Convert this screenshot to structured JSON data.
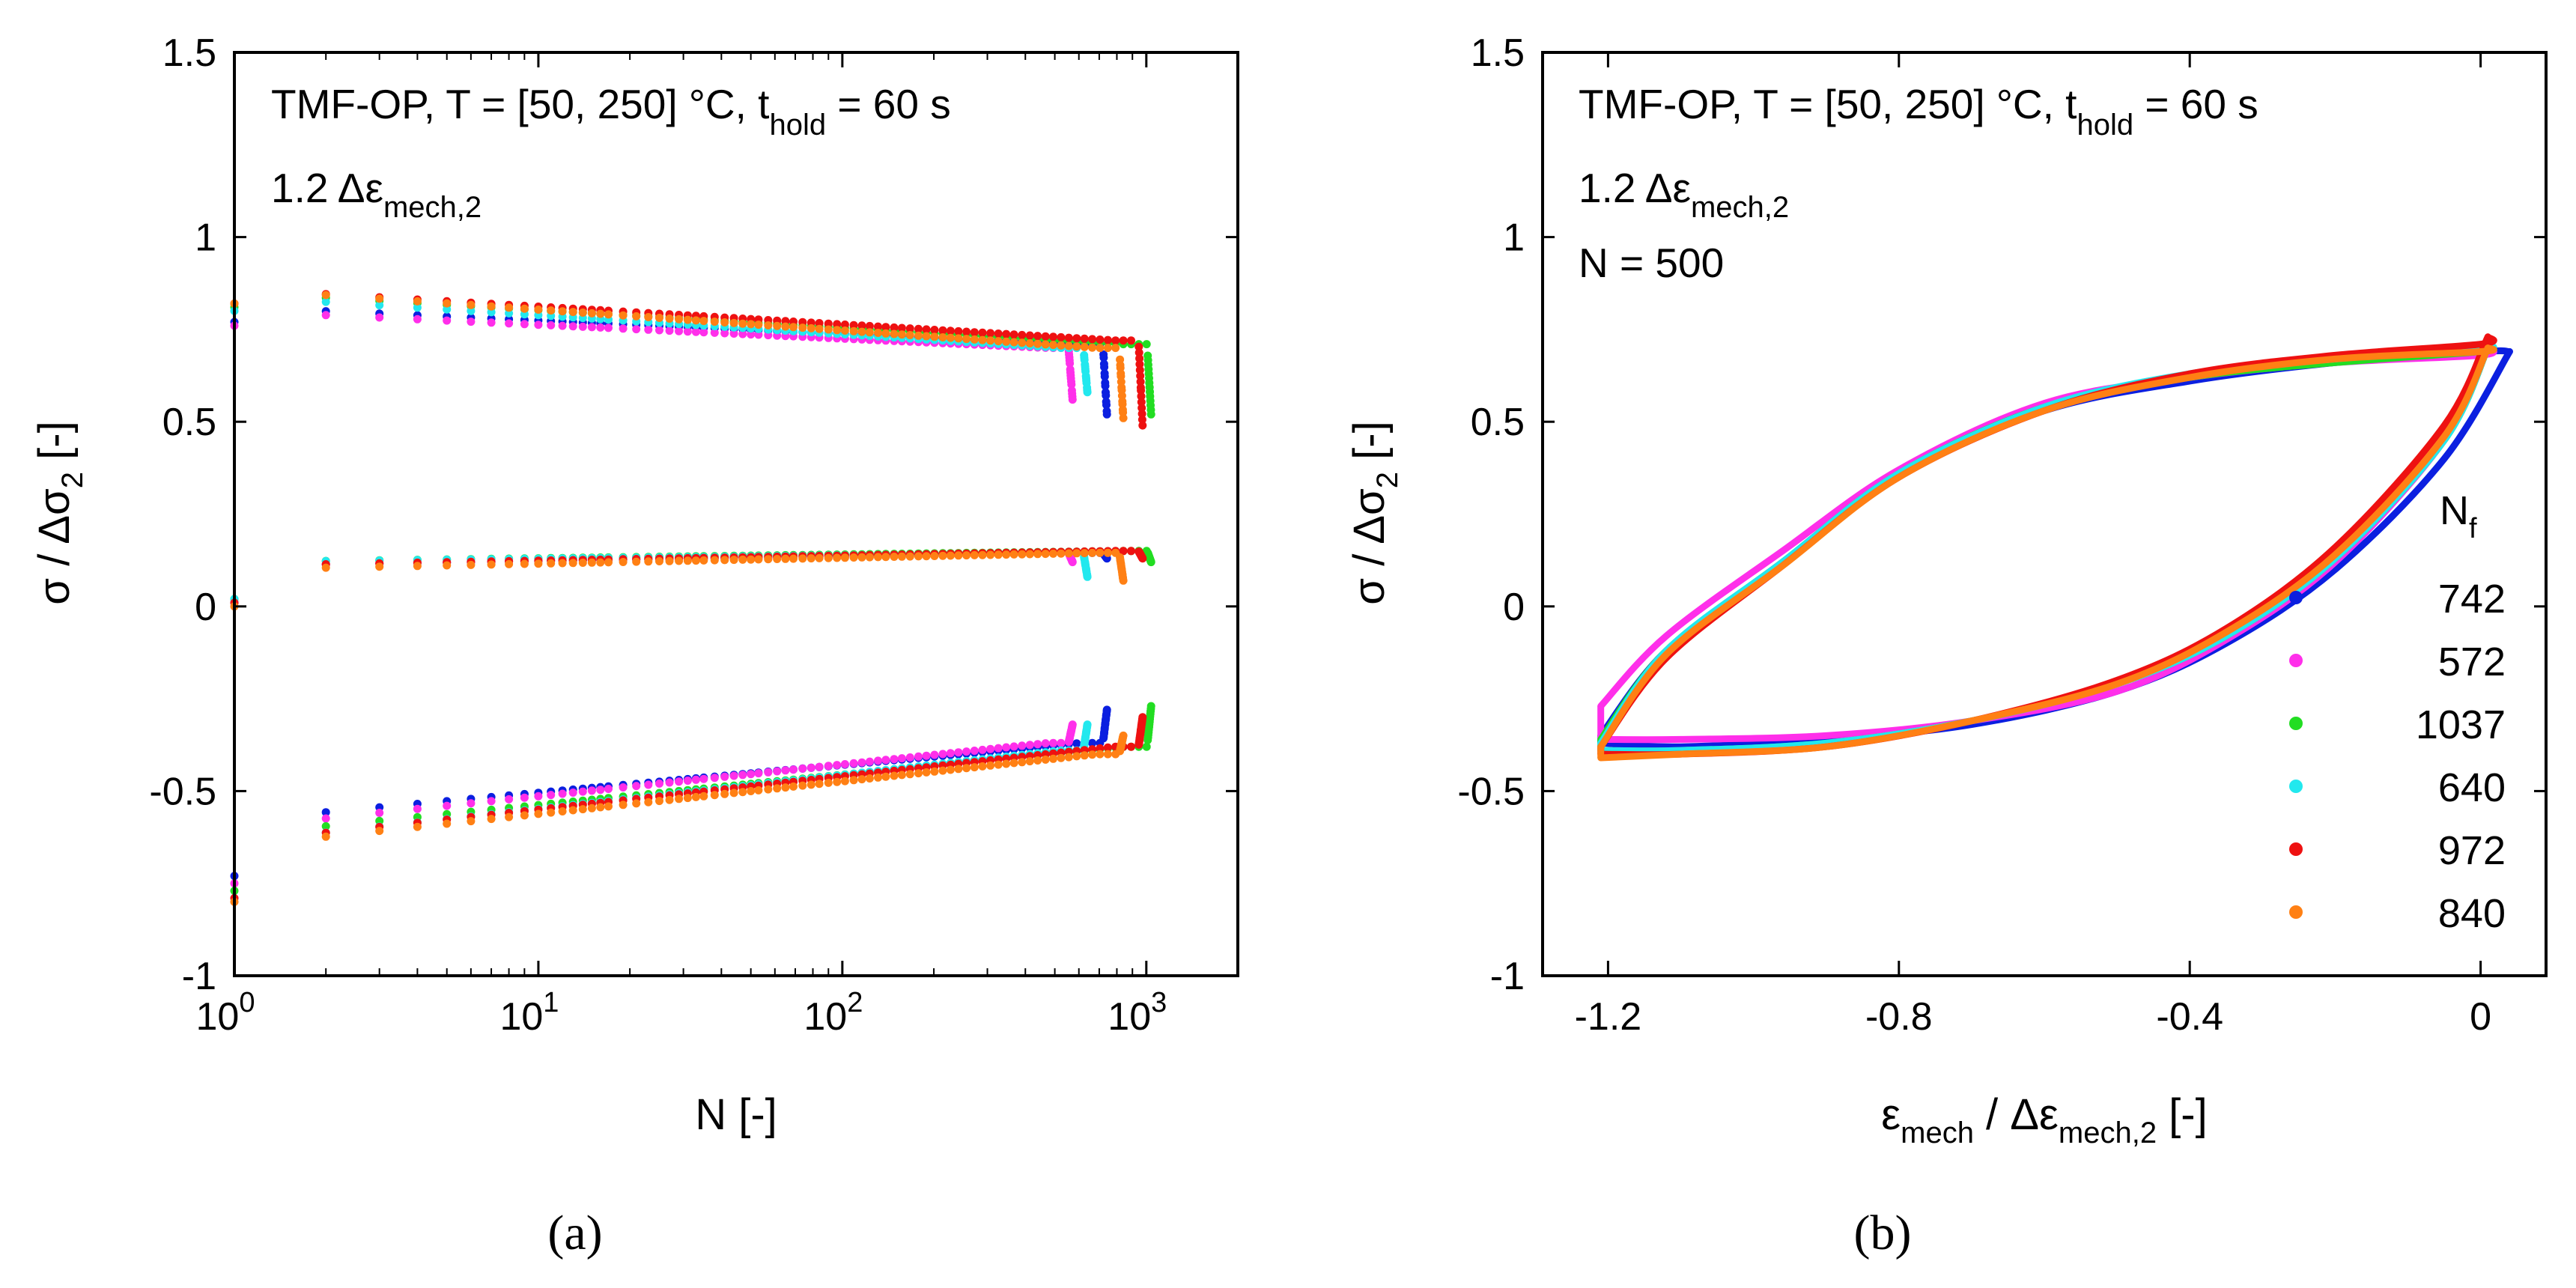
{
  "chart_data": [
    {
      "panel": "a",
      "type": "scatter",
      "caption": "(a)",
      "xscale": "log",
      "xlim": [
        1,
        2000
      ],
      "ylim": [
        -1,
        1.5
      ],
      "x_ticks": [
        {
          "base": "10",
          "exp": "0",
          "v": 1
        },
        {
          "base": "10",
          "exp": "1",
          "v": 10
        },
        {
          "base": "10",
          "exp": "2",
          "v": 100
        },
        {
          "base": "10",
          "exp": "3",
          "v": 1000
        }
      ],
      "y_ticks": [
        {
          "label": "1.5",
          "v": 1.5
        },
        {
          "label": "1",
          "v": 1
        },
        {
          "label": "0.5",
          "v": 0.5
        },
        {
          "label": "0",
          "v": 0
        },
        {
          "label": "-0.5",
          "v": -0.5
        },
        {
          "label": "-1",
          "v": -1
        }
      ],
      "xlabel": "N [-]",
      "ylabel": {
        "pre": "σ / Δσ",
        "sub": "2",
        "post": " [-]"
      },
      "annotation_line1": {
        "text": "TMF-OP, T = [50, 250] °C, t",
        "sub": "hold",
        "post": " = 60 s"
      },
      "annotation_line2": {
        "text": "1.2 Δε",
        "sub": "mech,2"
      },
      "series": [
        {
          "name": "742",
          "color": "#0b1fe0",
          "Nf": 742,
          "max": {
            "start": 0.81,
            "end": 0.71,
            "drop_to": 0.52
          },
          "mean": {
            "start": 0.11,
            "end": 0.145,
            "drop_to": 0.13
          },
          "min": {
            "start": -0.58,
            "end": -0.37,
            "drop_to": -0.28
          }
        },
        {
          "name": "572",
          "color": "#ff2fea",
          "Nf": 572,
          "max": {
            "start": 0.8,
            "end": 0.7,
            "drop_to": 0.56
          },
          "mean": {
            "start": 0.11,
            "end": 0.145,
            "drop_to": 0.12
          },
          "min": {
            "start": -0.6,
            "end": -0.37,
            "drop_to": -0.32
          }
        },
        {
          "name": "1037",
          "color": "#22dd22",
          "Nf": 1037,
          "max": {
            "start": 0.85,
            "end": 0.71,
            "drop_to": 0.52
          },
          "mean": {
            "start": 0.12,
            "end": 0.15,
            "drop_to": 0.12
          },
          "min": {
            "start": -0.62,
            "end": -0.38,
            "drop_to": -0.27
          }
        },
        {
          "name": "640",
          "color": "#22e8ee",
          "Nf": 640,
          "max": {
            "start": 0.84,
            "end": 0.7,
            "drop_to": 0.58
          },
          "mean": {
            "start": 0.12,
            "end": 0.145,
            "drop_to": 0.08
          },
          "min": {
            "start": -0.64,
            "end": -0.39,
            "drop_to": -0.32
          }
        },
        {
          "name": "972",
          "color": "#ee1111",
          "Nf": 972,
          "max": {
            "start": 0.86,
            "end": 0.72,
            "drop_to": 0.49
          },
          "mean": {
            "start": 0.11,
            "end": 0.15,
            "drop_to": 0.13
          },
          "min": {
            "start": -0.64,
            "end": -0.38,
            "drop_to": -0.3
          }
        },
        {
          "name": "840",
          "color": "#ff8014",
          "Nf": 840,
          "max": {
            "start": 0.86,
            "end": 0.7,
            "drop_to": 0.51
          },
          "mean": {
            "start": 0.1,
            "end": 0.145,
            "drop_to": 0.07
          },
          "min": {
            "start": -0.65,
            "end": -0.4,
            "drop_to": -0.35
          }
        }
      ]
    },
    {
      "panel": "b",
      "type": "line",
      "caption": "(b)",
      "xlim": [
        -1.29,
        0.09
      ],
      "ylim": [
        -1,
        1.5
      ],
      "x_ticks": [
        {
          "label": "-1.2",
          "v": -1.2
        },
        {
          "label": "-0.8",
          "v": -0.8
        },
        {
          "label": "-0.4",
          "v": -0.4
        },
        {
          "label": "0",
          "v": 0
        }
      ],
      "y_ticks": [
        {
          "label": "1.5",
          "v": 1.5
        },
        {
          "label": "1",
          "v": 1
        },
        {
          "label": "0.5",
          "v": 0.5
        },
        {
          "label": "0",
          "v": 0
        },
        {
          "label": "-0.5",
          "v": -0.5
        },
        {
          "label": "-1",
          "v": -1
        }
      ],
      "xlabel": {
        "pre": "ε",
        "sub": "mech",
        "mid": " / Δε",
        "sub2": "mech,2",
        "post": " [-]"
      },
      "ylabel": {
        "pre": "σ / Δσ",
        "sub": "2",
        "post": " [-]"
      },
      "annotation_line1": {
        "text": "TMF-OP, T = [50, 250] °C, t",
        "sub": "hold",
        "post": " = 60 s"
      },
      "annotation_line2": {
        "text": "1.2 Δε",
        "sub": "mech,2"
      },
      "annotation_line3": "N = 500",
      "legend": {
        "title": "N",
        "title_sub": "f",
        "position": "right"
      },
      "series": [
        {
          "name": "742",
          "color": "#0b1fe0",
          "upper": [
            [
              -1.21,
              -0.35
            ],
            [
              -1.12,
              -0.12
            ],
            [
              -0.96,
              0.12
            ],
            [
              -0.8,
              0.36
            ],
            [
              -0.6,
              0.53
            ],
            [
              -0.4,
              0.61
            ],
            [
              -0.2,
              0.66
            ],
            [
              0.0,
              0.69
            ],
            [
              0.04,
              0.69
            ]
          ],
          "lower": [
            [
              -1.21,
              -0.37
            ],
            [
              -1.1,
              -0.38
            ],
            [
              -0.9,
              -0.36
            ],
            [
              -0.7,
              -0.32
            ],
            [
              -0.5,
              -0.23
            ],
            [
              -0.35,
              -0.1
            ],
            [
              -0.2,
              0.1
            ],
            [
              -0.05,
              0.4
            ],
            [
              0.04,
              0.69
            ]
          ]
        },
        {
          "name": "572",
          "color": "#ff2fea",
          "upper": [
            [
              -1.21,
              -0.27
            ],
            [
              -1.12,
              -0.08
            ],
            [
              -0.96,
              0.15
            ],
            [
              -0.8,
              0.37
            ],
            [
              -0.6,
              0.55
            ],
            [
              -0.4,
              0.62
            ],
            [
              -0.2,
              0.66
            ],
            [
              0.0,
              0.68
            ],
            [
              0.01,
              0.7
            ]
          ],
          "lower": [
            [
              -1.21,
              -0.36
            ],
            [
              -1.1,
              -0.36
            ],
            [
              -0.9,
              -0.35
            ],
            [
              -0.7,
              -0.31
            ],
            [
              -0.5,
              -0.23
            ],
            [
              -0.35,
              -0.09
            ],
            [
              -0.2,
              0.12
            ],
            [
              -0.05,
              0.45
            ],
            [
              0.01,
              0.7
            ]
          ]
        },
        {
          "name": "1037",
          "color": "#22dd22",
          "upper": [
            [
              -1.21,
              -0.36
            ],
            [
              -1.12,
              -0.12
            ],
            [
              -0.96,
              0.12
            ],
            [
              -0.8,
              0.36
            ],
            [
              -0.6,
              0.54
            ],
            [
              -0.4,
              0.62
            ],
            [
              -0.2,
              0.66
            ],
            [
              0.0,
              0.69
            ],
            [
              0.01,
              0.7
            ]
          ],
          "lower": [
            [
              -1.21,
              -0.39
            ],
            [
              -1.1,
              -0.39
            ],
            [
              -0.9,
              -0.37
            ],
            [
              -0.7,
              -0.31
            ],
            [
              -0.5,
              -0.21
            ],
            [
              -0.35,
              -0.08
            ],
            [
              -0.2,
              0.13
            ],
            [
              -0.05,
              0.45
            ],
            [
              0.01,
              0.7
            ]
          ]
        },
        {
          "name": "640",
          "color": "#22e8ee",
          "upper": [
            [
              -1.21,
              -0.37
            ],
            [
              -1.12,
              -0.12
            ],
            [
              -0.96,
              0.12
            ],
            [
              -0.8,
              0.36
            ],
            [
              -0.6,
              0.54
            ],
            [
              -0.4,
              0.63
            ],
            [
              -0.2,
              0.67
            ],
            [
              0.0,
              0.7
            ],
            [
              0.01,
              0.7
            ]
          ],
          "lower": [
            [
              -1.21,
              -0.39
            ],
            [
              -1.1,
              -0.39
            ],
            [
              -0.9,
              -0.37
            ],
            [
              -0.7,
              -0.31
            ],
            [
              -0.5,
              -0.21
            ],
            [
              -0.35,
              -0.08
            ],
            [
              -0.2,
              0.13
            ],
            [
              -0.05,
              0.45
            ],
            [
              0.01,
              0.7
            ]
          ]
        },
        {
          "name": "972",
          "color": "#ee1111",
          "upper": [
            [
              -1.21,
              -0.38
            ],
            [
              -1.12,
              -0.14
            ],
            [
              -0.96,
              0.11
            ],
            [
              -0.8,
              0.35
            ],
            [
              -0.6,
              0.53
            ],
            [
              -0.4,
              0.63
            ],
            [
              -0.2,
              0.68
            ],
            [
              0.0,
              0.71
            ],
            [
              0.01,
              0.73
            ]
          ],
          "lower": [
            [
              -1.21,
              -0.4
            ],
            [
              -1.1,
              -0.4
            ],
            [
              -0.9,
              -0.38
            ],
            [
              -0.7,
              -0.31
            ],
            [
              -0.5,
              -0.2
            ],
            [
              -0.35,
              -0.06
            ],
            [
              -0.2,
              0.16
            ],
            [
              -0.05,
              0.49
            ],
            [
              0.01,
              0.73
            ]
          ]
        },
        {
          "name": "840",
          "color": "#ff8014",
          "upper": [
            [
              -1.21,
              -0.38
            ],
            [
              -1.12,
              -0.13
            ],
            [
              -0.96,
              0.11
            ],
            [
              -0.8,
              0.35
            ],
            [
              -0.6,
              0.53
            ],
            [
              -0.4,
              0.62
            ],
            [
              -0.2,
              0.67
            ],
            [
              0.0,
              0.69
            ],
            [
              0.01,
              0.7
            ]
          ],
          "lower": [
            [
              -1.21,
              -0.41
            ],
            [
              -1.1,
              -0.4
            ],
            [
              -0.9,
              -0.38
            ],
            [
              -0.7,
              -0.31
            ],
            [
              -0.5,
              -0.21
            ],
            [
              -0.35,
              -0.07
            ],
            [
              -0.2,
              0.14
            ],
            [
              -0.05,
              0.46
            ],
            [
              0.01,
              0.7
            ]
          ]
        }
      ]
    }
  ]
}
